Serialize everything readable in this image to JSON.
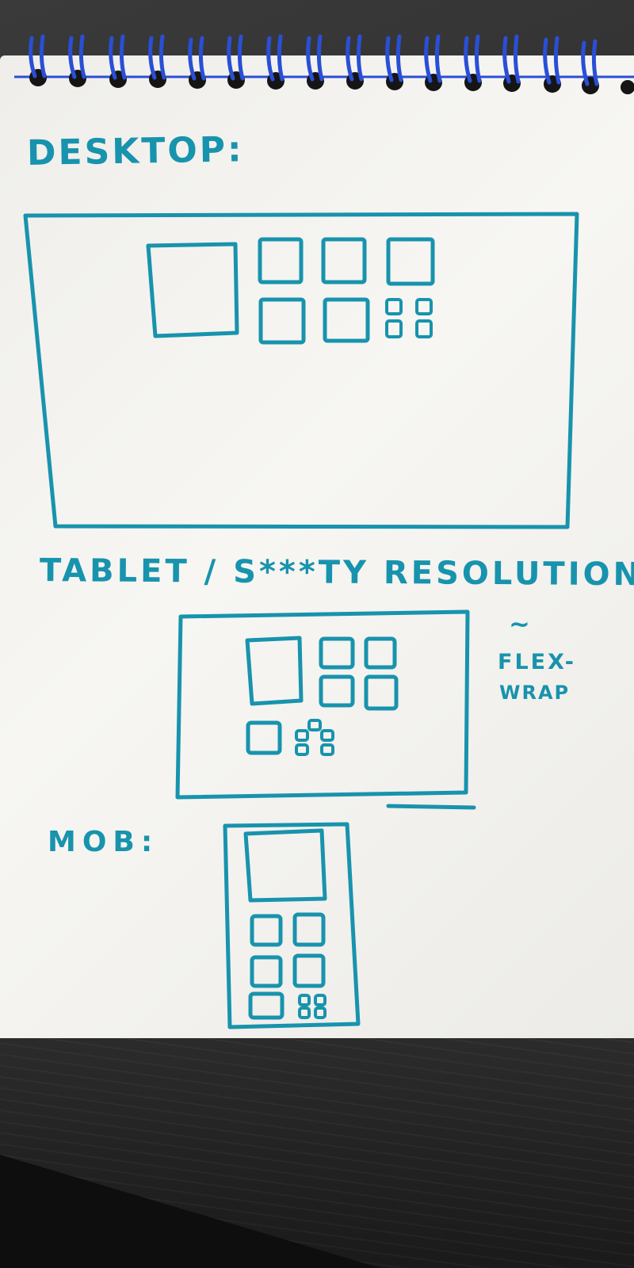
{
  "labels": {
    "desktop": "DESKTOP:",
    "tablet": "TABLET / S***TY RESOLUTION:",
    "mobile": "MOB:"
  },
  "notes": {
    "tilde": "~",
    "flex": "FLEX-",
    "wrap": "WRAP"
  },
  "colors": {
    "ink": "#1893ad",
    "spiral": "#2a4fd6",
    "paper": "#f3f2ef"
  }
}
